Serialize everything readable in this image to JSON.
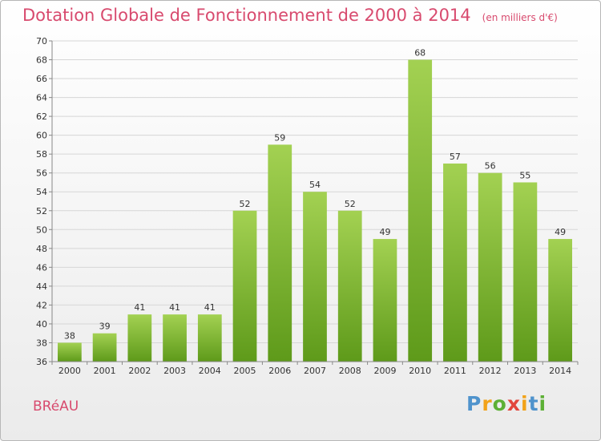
{
  "header": {
    "title": "Dotation Globale de Fonctionnement de 2000 à 2014",
    "unit": "(en milliers d'€)"
  },
  "footer": {
    "commune": "BRéAU",
    "logo": "Proxiti"
  },
  "colors": {
    "accent": "#d84a6e",
    "bar_top": "#a3d152",
    "bar_bottom": "#5e9a1a"
  },
  "chart_data": {
    "type": "bar",
    "title": "Dotation Globale de Fonctionnement de 2000 à 2014",
    "subtitle": "(en milliers d'€)",
    "xlabel": "",
    "ylabel": "",
    "categories": [
      "2000",
      "2001",
      "2002",
      "2003",
      "2004",
      "2005",
      "2006",
      "2007",
      "2008",
      "2009",
      "2010",
      "2011",
      "2012",
      "2013",
      "2014"
    ],
    "values": [
      38,
      39,
      41,
      41,
      41,
      52,
      59,
      54,
      52,
      49,
      68,
      57,
      56,
      55,
      49
    ],
    "ylim": [
      36,
      70
    ],
    "yticks": [
      36,
      38,
      40,
      42,
      44,
      46,
      48,
      50,
      52,
      54,
      56,
      58,
      60,
      62,
      64,
      66,
      68,
      70
    ],
    "grid": true
  }
}
